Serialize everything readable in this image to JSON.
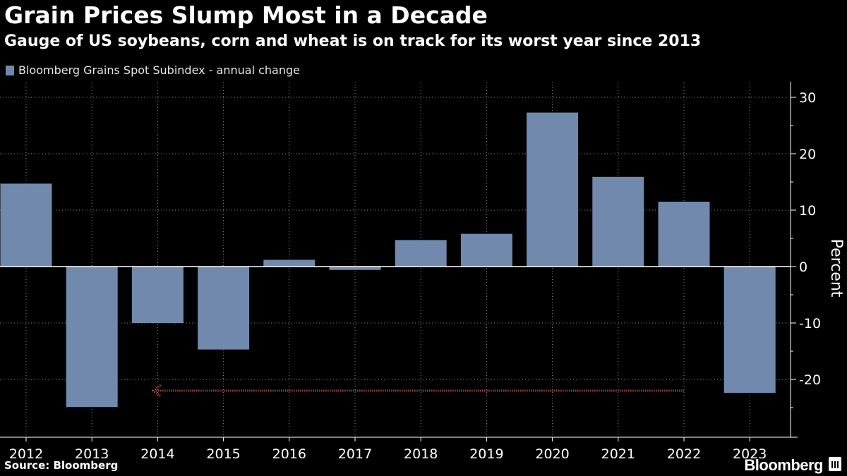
{
  "header": {
    "title": "Grain Prices Slump Most in a Decade",
    "subtitle": "Gauge of US soybeans, corn and wheat is on track for its worst year since 2013"
  },
  "footer": {
    "source": "Source: Bloomberg",
    "brand": "Bloomberg"
  },
  "colors": {
    "bar": "#7189ad",
    "arrow": "#e06060",
    "grid": "#8a8a8a",
    "background": "#000000"
  },
  "chart_data": {
    "type": "bar",
    "title": "Grain Prices Slump Most in a Decade",
    "legend": [
      "Bloomberg Grains Spot Subindex - annual change"
    ],
    "legend_position": "top-left",
    "xlabel": "",
    "ylabel": "Percent",
    "ylim": [
      -30,
      30
    ],
    "yticks": [
      30,
      20,
      10,
      0,
      -10,
      -20
    ],
    "ytick_labels": [
      "30",
      "20",
      "10",
      "0",
      "-10",
      "-20"
    ],
    "grid": true,
    "categories": [
      "2012",
      "2013",
      "2014",
      "2015",
      "2016",
      "2017",
      "2018",
      "2019",
      "2020",
      "2021",
      "2022",
      "2023"
    ],
    "series": [
      {
        "name": "Bloomberg Grains Spot Subindex - annual change",
        "values": [
          14.7,
          -24.9,
          -10.0,
          -14.7,
          1.2,
          -0.6,
          4.7,
          5.8,
          27.3,
          15.9,
          11.5,
          -22.4
        ]
      }
    ],
    "annotations": [
      {
        "type": "arrow",
        "from_category": "2022",
        "to_category": "2014",
        "y": -22,
        "style": "dotted"
      }
    ]
  }
}
